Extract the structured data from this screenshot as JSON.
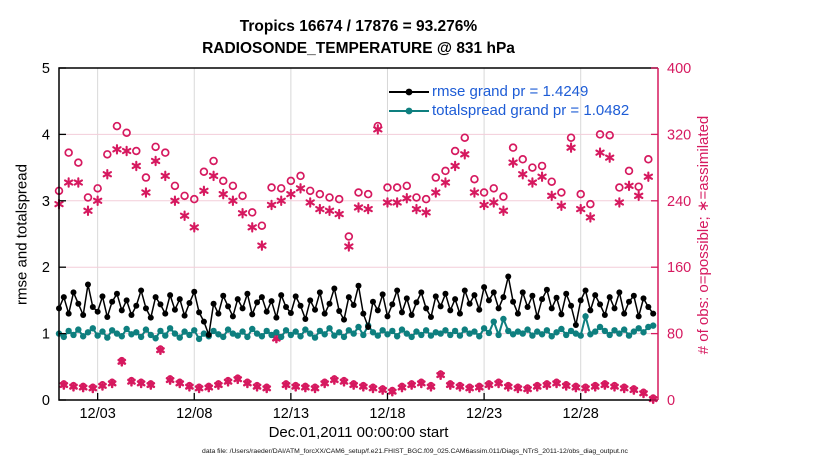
{
  "chart_data": {
    "type": "line+scatter",
    "title": "Tropics 16674 / 17876 = 93.276%",
    "subtitle": "RADIOSONDE_TEMPERATURE @ 831 hPa",
    "xlabel": "Dec.01,2011 00:00:00 start",
    "ylabel_left": "rmse and totalspread",
    "ylabel_right": "# of obs: o=possible; ∗=assimilated",
    "footer": "data file: /Users/raeder/DAI/ATM_forcXX/CAM6_setup/f.e21.FHIST_BGC.f09_025.CAM6assim.011/Diags_NTrS_2011-12/obs_diag_output.nc",
    "x_range_days": [
      1,
      32
    ],
    "x_ticks": [
      {
        "day": 3,
        "label": "12/03"
      },
      {
        "day": 8,
        "label": "12/08"
      },
      {
        "day": 13,
        "label": "12/13"
      },
      {
        "day": 18,
        "label": "12/18"
      },
      {
        "day": 23,
        "label": "12/23"
      },
      {
        "day": 28,
        "label": "12/28"
      }
    ],
    "ylim_left": [
      0,
      5
    ],
    "yticks_left": [
      0,
      1,
      2,
      3,
      4,
      5
    ],
    "ylim_right": [
      0,
      400
    ],
    "yticks_right": [
      0,
      80,
      160,
      240,
      320,
      400
    ],
    "grid": true,
    "legend_position": "north",
    "legend": [
      {
        "key": "rmse",
        "label": "rmse grand pr = 1.4249",
        "color": "#000000"
      },
      {
        "key": "totalspread",
        "label": "totalspread grand pr = 1.0482",
        "color": "#0e7f7f"
      }
    ],
    "colors": {
      "rmse": "#000000",
      "totalspread": "#0e7f7f",
      "obs": "#d6195f",
      "legend_text": "#1d5cd6",
      "grid_horizontal": "#f3cdd9",
      "grid_vertical": "#d8d8d8",
      "left_axis": "#000000",
      "right_axis": "#d6195f"
    },
    "series": {
      "rmse": {
        "axis": "left",
        "marker": "filled-circle",
        "x_start": 1.0,
        "x_step": 0.25,
        "values": [
          1.38,
          1.55,
          1.3,
          1.62,
          1.45,
          1.28,
          1.74,
          1.4,
          1.33,
          1.56,
          1.25,
          1.48,
          1.6,
          1.35,
          1.5,
          1.28,
          1.42,
          1.65,
          1.38,
          1.24,
          1.55,
          1.44,
          1.3,
          1.58,
          1.36,
          1.52,
          1.27,
          1.46,
          1.63,
          1.32,
          1.18,
          0.98,
          1.45,
          1.3,
          1.57,
          1.41,
          1.26,
          1.52,
          1.38,
          1.6,
          1.29,
          1.47,
          1.55,
          1.33,
          1.49,
          1.24,
          1.58,
          1.4,
          1.31,
          1.56,
          1.42,
          1.22,
          1.5,
          1.36,
          1.62,
          1.3,
          1.45,
          1.68,
          1.34,
          1.21,
          1.55,
          1.43,
          1.72,
          1.3,
          1.1,
          1.48,
          1.35,
          1.59,
          1.26,
          1.44,
          1.65,
          1.32,
          1.53,
          1.28,
          1.47,
          1.62,
          1.38,
          1.25,
          1.56,
          1.41,
          1.6,
          1.35,
          1.52,
          1.3,
          1.65,
          1.45,
          1.58,
          1.36,
          1.7,
          1.5,
          1.62,
          1.38,
          1.55,
          1.86,
          1.48,
          1.3,
          1.62,
          1.4,
          1.57,
          1.25,
          1.52,
          1.66,
          1.38,
          1.54,
          1.29,
          1.6,
          1.42,
          1.13,
          1.5,
          1.65,
          1.35,
          1.58,
          1.44,
          1.28,
          1.55,
          1.38,
          1.62,
          1.3,
          1.48,
          1.57,
          1.26,
          1.53,
          1.4,
          1.3
        ]
      },
      "totalspread": {
        "axis": "left",
        "marker": "filled-circle",
        "x_start": 1.0,
        "x_step": 0.25,
        "values": [
          1.0,
          0.95,
          1.04,
          0.98,
          1.06,
          0.96,
          1.02,
          1.08,
          0.97,
          1.03,
          0.94,
          1.05,
          1.0,
          0.96,
          1.07,
          0.99,
          1.02,
          0.95,
          1.06,
          0.98,
          0.93,
          1.04,
          0.97,
          1.08,
          1.0,
          0.94,
          1.03,
          0.98,
          1.05,
          0.92,
          1.0,
          0.96,
          1.04,
          0.99,
          0.95,
          1.06,
          1.0,
          0.97,
          1.03,
          0.95,
          1.07,
          1.0,
          0.96,
          1.04,
          0.98,
          1.02,
          0.95,
          1.05,
          0.98,
          1.03,
          0.96,
          1.06,
          1.0,
          0.94,
          1.04,
          0.99,
          1.08,
          0.97,
          1.02,
          0.95,
          1.05,
          1.0,
          1.1,
          0.98,
          1.12,
          1.02,
          0.97,
          1.05,
          0.99,
          1.04,
          0.96,
          1.06,
          1.0,
          0.95,
          1.03,
          0.98,
          1.05,
          0.97,
          1.02,
          1.0,
          1.05,
          0.98,
          1.04,
          0.97,
          1.06,
          1.0,
          1.03,
          0.96,
          1.08,
          1.01,
          1.18,
          0.98,
          1.22,
          1.04,
          0.99,
          1.03,
          1.0,
          1.06,
          0.97,
          1.03,
          0.99,
          1.05,
          0.96,
          1.02,
          1.07,
          0.98,
          1.04,
          1.0,
          0.97,
          1.26,
          0.99,
          1.03,
          1.1,
          1.04,
          0.98,
          1.05,
          1.0,
          1.06,
          0.97,
          1.03,
          1.08,
          1.02,
          1.1,
          1.12
        ]
      },
      "possible": {
        "axis": "right",
        "marker": "open-circle",
        "x_start": 1.0,
        "x_step": 0.5,
        "values": [
          252,
          298,
          286,
          244,
          255,
          296,
          330,
          322,
          300,
          268,
          305,
          298,
          258,
          246,
          242,
          275,
          288,
          264,
          258,
          246,
          226,
          210,
          256,
          255,
          264,
          270,
          252,
          248,
          244,
          242,
          197,
          250,
          248,
          330,
          256,
          256,
          258,
          244,
          242,
          268,
          276,
          300,
          316,
          266,
          250,
          255,
          245,
          304,
          290,
          280,
          282,
          263,
          250,
          316,
          248,
          236,
          320,
          319,
          256,
          276,
          257,
          290
        ]
      },
      "assimilated": {
        "axis": "right",
        "marker": "asterisk",
        "x_start": 1.0,
        "x_step": 0.5,
        "values": [
          236,
          262,
          262,
          228,
          240,
          272,
          302,
          300,
          282,
          250,
          288,
          270,
          240,
          222,
          208,
          252,
          270,
          248,
          240,
          225,
          208,
          186,
          235,
          240,
          248,
          255,
          238,
          230,
          228,
          224,
          185,
          232,
          230,
          326,
          238,
          238,
          243,
          230,
          226,
          250,
          262,
          282,
          296,
          250,
          235,
          238,
          228,
          286,
          272,
          262,
          269,
          246,
          234,
          304,
          230,
          220,
          298,
          292,
          238,
          258,
          246,
          269
        ]
      },
      "offhour_obs": {
        "axis": "right",
        "marker": "circle-asterisk-overlap",
        "x_start": 1.25,
        "x_step": 0.5,
        "values": [
          18,
          16,
          15,
          14,
          17,
          20,
          46,
          22,
          20,
          18,
          60,
          24,
          20,
          16,
          14,
          15,
          18,
          22,
          25,
          20,
          16,
          14,
          74,
          18,
          16,
          15,
          14,
          20,
          24,
          22,
          18,
          16,
          14,
          12,
          10,
          15,
          18,
          20,
          16,
          30,
          18,
          16,
          14,
          15,
          18,
          20,
          16,
          14,
          13,
          16,
          18,
          20,
          17,
          15,
          14,
          16,
          18,
          16,
          14,
          12,
          8,
          1
        ]
      }
    }
  }
}
